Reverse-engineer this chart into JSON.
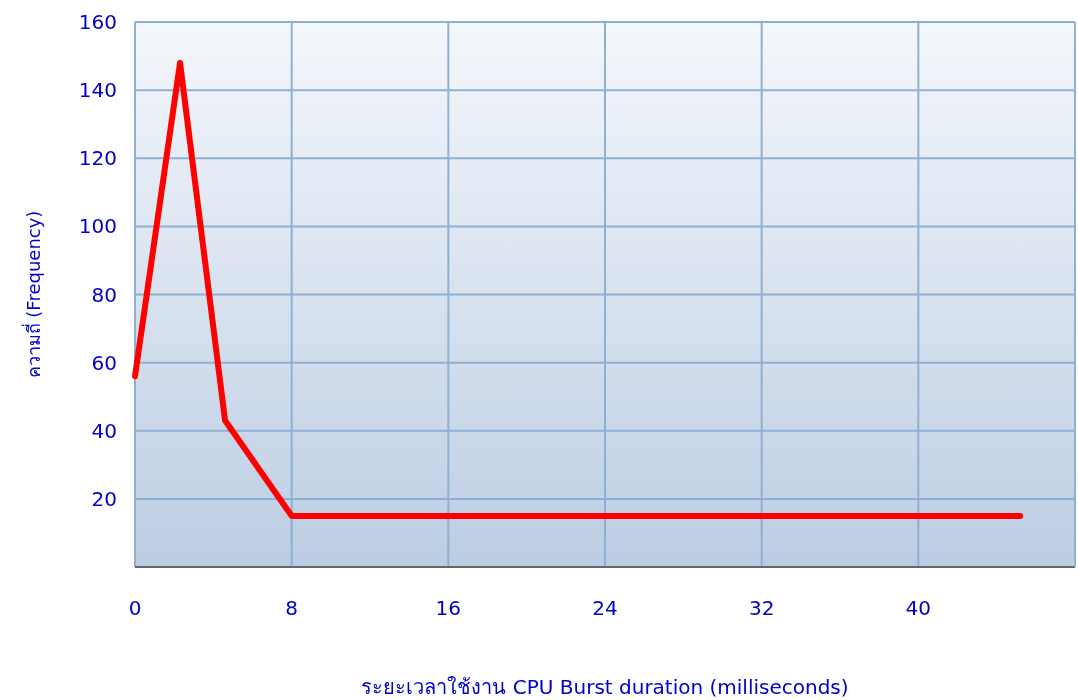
{
  "chart_data": {
    "type": "line",
    "xlabel": "ระยะเวลาใช้งาน CPU Burst duration (milliseconds)",
    "ylabel": "ความถี่ (Frequency)",
    "x": [
      0,
      2.3,
      4.6,
      8,
      45.2
    ],
    "series": [
      {
        "color": "#ff0000",
        "values": [
          56,
          148,
          43,
          15,
          15
        ]
      }
    ],
    "xlim": [
      0,
      48
    ],
    "xticks": [
      0,
      8,
      16,
      24,
      32,
      40
    ],
    "ylim": [
      0,
      160
    ],
    "yticks": [
      20,
      40,
      60,
      80,
      100,
      120,
      140,
      160
    ],
    "grid": true,
    "marker": "none",
    "line_style": "solid"
  }
}
